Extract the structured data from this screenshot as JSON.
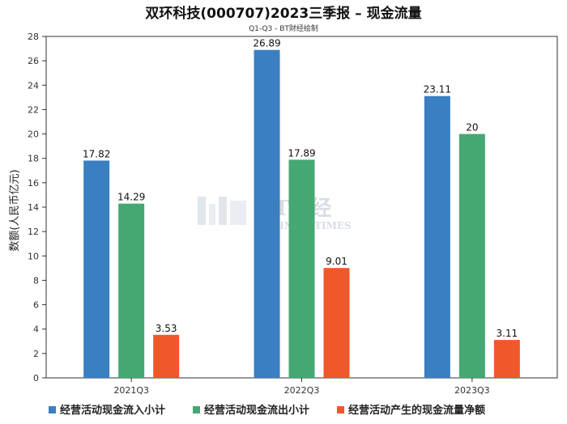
{
  "chart_data": {
    "type": "bar",
    "title": "双环科技(000707)2023三季报 – 现金流量",
    "subtitle": "Q1-Q3 - BT财经绘制",
    "ylabel": "数额(人民币亿元)",
    "xlabel": "",
    "ylim": [
      0,
      28
    ],
    "yticks": [
      0,
      2,
      4,
      6,
      8,
      10,
      12,
      14,
      16,
      18,
      20,
      22,
      24,
      26,
      28
    ],
    "categories": [
      "2021Q3",
      "2022Q3",
      "2023Q3"
    ],
    "series": [
      {
        "name": "经营活动现金流入小计",
        "color": "#3a7fc1",
        "values": [
          17.82,
          26.89,
          23.11
        ]
      },
      {
        "name": "经营活动现金流出小计",
        "color": "#45a874",
        "values": [
          14.29,
          17.89,
          20
        ]
      },
      {
        "name": "经营活动产生的现金流量净额",
        "color": "#f0572a",
        "values": [
          3.53,
          9.01,
          3.11
        ]
      }
    ],
    "grid": false,
    "legend_position": "bottom"
  },
  "watermark": {
    "main": "BT财经",
    "sub": "BUSINESSTIMES"
  }
}
